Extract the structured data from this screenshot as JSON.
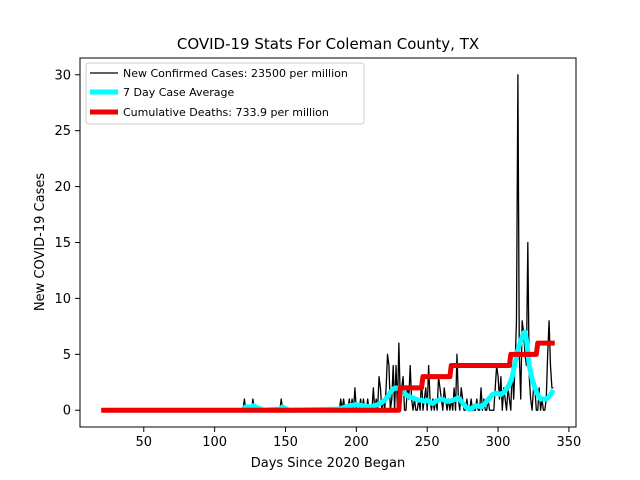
{
  "chart_data": {
    "type": "line",
    "title": "COVID-19 Stats For Coleman County, TX",
    "xlabel": "Days Since 2020 Began",
    "ylabel": "New COVID-19 Cases",
    "xlim": [
      5,
      355
    ],
    "ylim": [
      -1.5,
      31.5
    ],
    "xticks": [
      50,
      100,
      150,
      200,
      250,
      300,
      350
    ],
    "yticks": [
      0,
      5,
      10,
      15,
      20,
      25,
      30
    ],
    "grid": false,
    "legend_position": "top-left",
    "series": [
      {
        "name": "New Confirmed Cases: 23500 per million",
        "color": "#000000",
        "style": "thin",
        "x": [
          20,
          120,
          121,
          122,
          126,
          127,
          128,
          146,
          147,
          148,
          188,
          189,
          190,
          191,
          192,
          193,
          194,
          195,
          196,
          197,
          198,
          199,
          200,
          201,
          202,
          203,
          204,
          205,
          206,
          207,
          208,
          209,
          210,
          211,
          212,
          213,
          214,
          215,
          216,
          217,
          218,
          219,
          220,
          221,
          222,
          223,
          224,
          225,
          226,
          227,
          228,
          229,
          230,
          231,
          232,
          233,
          234,
          235,
          236,
          237,
          238,
          239,
          240,
          241,
          242,
          243,
          244,
          245,
          246,
          247,
          248,
          249,
          250,
          251,
          252,
          253,
          254,
          255,
          256,
          257,
          258,
          259,
          260,
          261,
          262,
          263,
          264,
          265,
          266,
          267,
          268,
          269,
          270,
          271,
          272,
          273,
          274,
          275,
          276,
          277,
          278,
          279,
          280,
          281,
          282,
          283,
          284,
          285,
          286,
          287,
          288,
          289,
          290,
          291,
          292,
          293,
          294,
          295,
          296,
          297,
          298,
          299,
          300,
          301,
          302,
          303,
          304,
          305,
          306,
          307,
          308,
          309,
          310,
          311,
          312,
          313,
          314,
          315,
          316,
          317,
          318,
          319,
          320,
          321,
          322,
          323,
          324,
          325,
          326,
          327,
          328,
          329,
          330,
          331,
          332,
          333,
          334,
          335,
          336,
          337,
          338,
          339
        ],
        "y": [
          0,
          0,
          1,
          0,
          0,
          1,
          0,
          0,
          1,
          0,
          0,
          1,
          0,
          1,
          0,
          0,
          0,
          1,
          0,
          1,
          0,
          2,
          0,
          0,
          0,
          1,
          0,
          1,
          0,
          0,
          1,
          0,
          0,
          0,
          2,
          0,
          1,
          0,
          3,
          2,
          0,
          1,
          0,
          2,
          5,
          4,
          0,
          1,
          4,
          0,
          4,
          0,
          6,
          1,
          2,
          3,
          0,
          0,
          2,
          1,
          4,
          1,
          0,
          1,
          0,
          0,
          1,
          0,
          3,
          0,
          1,
          2,
          0,
          4,
          1,
          0,
          1,
          0,
          1,
          0,
          3,
          2,
          1,
          0,
          2,
          1,
          0,
          1,
          0,
          1,
          0,
          2,
          0,
          5,
          1,
          0,
          2,
          1,
          0,
          0,
          1,
          0,
          0,
          1,
          0,
          0,
          0,
          1,
          0,
          0,
          2,
          0,
          1,
          0,
          0,
          1,
          0,
          0,
          0,
          0,
          2,
          4,
          3,
          1,
          3,
          0,
          2,
          1,
          0,
          2,
          1,
          0,
          4,
          1,
          4,
          8,
          30,
          5,
          1,
          8,
          7,
          5,
          4,
          15,
          3,
          1,
          0,
          2,
          2,
          0,
          0,
          2,
          0,
          1,
          0,
          0,
          1,
          5,
          8,
          4,
          2,
          2
        ]
      },
      {
        "name": "7 Day Case Average",
        "color": "#00ffff",
        "style": "thick",
        "x": [
          120,
          121,
          122,
          123,
          124,
          125,
          126,
          127,
          128,
          129,
          130,
          131,
          132,
          133,
          134,
          146,
          147,
          148,
          149,
          150,
          151,
          152,
          188,
          190,
          195,
          200,
          205,
          210,
          215,
          218,
          220,
          222,
          224,
          226,
          228,
          230,
          232,
          234,
          236,
          238,
          240,
          242,
          244,
          246,
          248,
          250,
          252,
          254,
          256,
          258,
          260,
          262,
          264,
          266,
          268,
          270,
          272,
          274,
          276,
          278,
          280,
          282,
          284,
          286,
          288,
          290,
          292,
          294,
          296,
          298,
          300,
          302,
          304,
          306,
          308,
          310,
          312,
          314,
          316,
          318,
          319,
          320,
          321,
          322,
          324,
          326,
          328,
          330,
          332,
          334,
          336,
          338,
          339
        ],
        "y": [
          0.1,
          0.2,
          0.3,
          0.3,
          0.3,
          0.3,
          0.3,
          0.4,
          0.4,
          0.3,
          0.2,
          0.2,
          0.1,
          0.1,
          0,
          0.1,
          0.2,
          0.3,
          0.2,
          0.1,
          0.1,
          0,
          0.1,
          0.2,
          0.4,
          0.5,
          0.4,
          0.3,
          0.5,
          0.7,
          0.9,
          1.2,
          1.6,
          1.9,
          2,
          1.9,
          1.7,
          1.5,
          1.3,
          1.2,
          1.1,
          1,
          0.9,
          0.9,
          0.8,
          0.9,
          0.7,
          0.6,
          0.8,
          0.9,
          1,
          0.9,
          0.8,
          0.8,
          0.9,
          1,
          1.1,
          0.8,
          0.5,
          0.2,
          0.1,
          0.2,
          0.4,
          0.4,
          0.3,
          0.5,
          0.8,
          1.1,
          1.4,
          1.5,
          1.5,
          1.4,
          1.6,
          1.9,
          2.3,
          3,
          4.2,
          5.4,
          6.2,
          6.9,
          7,
          6.3,
          5.2,
          4,
          2.8,
          2,
          1.4,
          1,
          1,
          1,
          1.2,
          1.6,
          1.8
        ]
      },
      {
        "name": "Cumulative Deaths: 733.9 per million",
        "color": "#ee0000",
        "style": "thick-step",
        "x": [
          20,
          230,
          231,
          246,
          247,
          266,
          267,
          308,
          309,
          327,
          328,
          340
        ],
        "y": [
          0,
          0,
          2,
          2,
          3,
          3,
          4,
          4,
          5,
          5,
          6,
          6
        ]
      }
    ]
  }
}
